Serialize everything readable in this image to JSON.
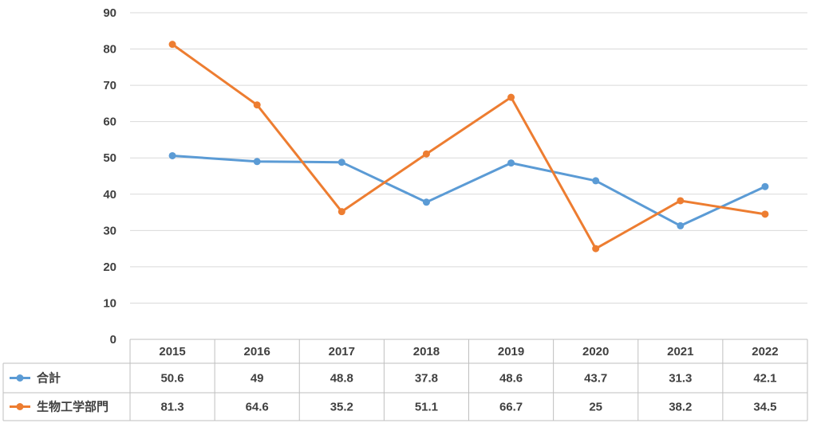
{
  "chart_data": {
    "type": "line",
    "categories": [
      "2015",
      "2016",
      "2017",
      "2018",
      "2019",
      "2020",
      "2021",
      "2022"
    ],
    "series": [
      {
        "name": "合計",
        "color": "#5b9bd5",
        "values": [
          50.6,
          49,
          48.8,
          37.8,
          48.6,
          43.7,
          31.3,
          42.1
        ]
      },
      {
        "name": "生物工学部門",
        "color": "#ed7d31",
        "values": [
          81.3,
          64.6,
          35.2,
          51.1,
          66.7,
          25,
          38.2,
          34.5
        ]
      }
    ],
    "ylim": [
      0,
      90
    ],
    "yticks": [
      0,
      10,
      20,
      30,
      40,
      50,
      60,
      70,
      80,
      90
    ],
    "grid": true,
    "legend": "data-table"
  }
}
